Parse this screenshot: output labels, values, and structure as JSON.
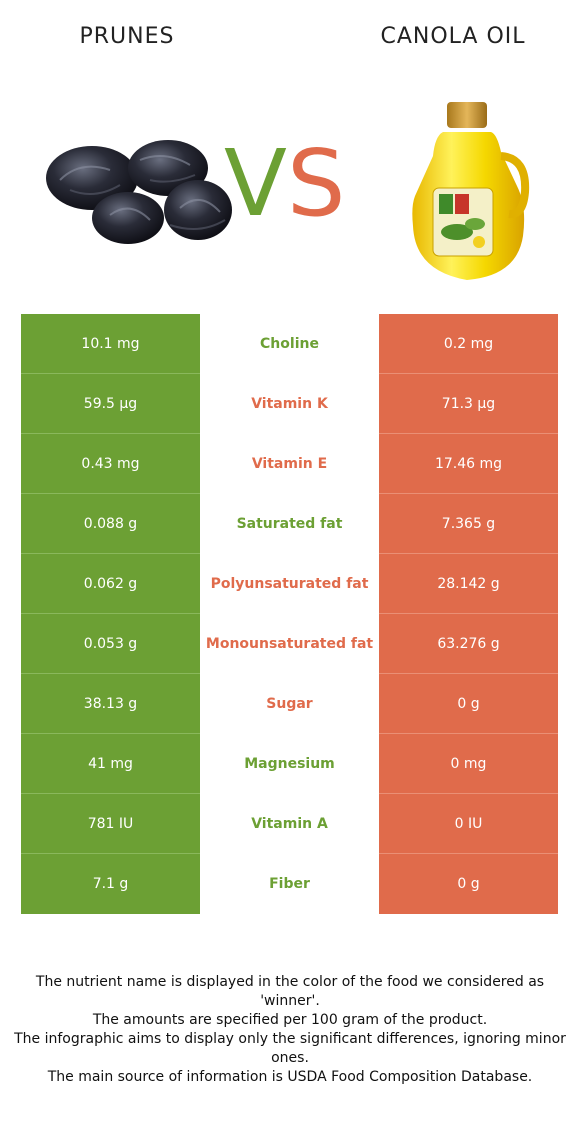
{
  "left_food": {
    "name": "PRUNES",
    "color": "#6ca034"
  },
  "right_food": {
    "name": "CANOLA OIL",
    "color": "#e06b4b"
  },
  "vs": {
    "v": "V",
    "s": "S"
  },
  "rows": [
    {
      "nutrient": "Choline",
      "left": "10.1 mg",
      "right": "0.2 mg",
      "winner": "left"
    },
    {
      "nutrient": "Vitamin K",
      "left": "59.5 µg",
      "right": "71.3 µg",
      "winner": "right"
    },
    {
      "nutrient": "Vitamin E",
      "left": "0.43 mg",
      "right": "17.46 mg",
      "winner": "right"
    },
    {
      "nutrient": "Saturated fat",
      "left": "0.088 g",
      "right": "7.365 g",
      "winner": "left"
    },
    {
      "nutrient": "Polyunsaturated fat",
      "left": "0.062 g",
      "right": "28.142 g",
      "winner": "right"
    },
    {
      "nutrient": "Monounsaturated fat",
      "left": "0.053 g",
      "right": "63.276 g",
      "winner": "right"
    },
    {
      "nutrient": "Sugar",
      "left": "38.13 g",
      "right": "0 g",
      "winner": "right"
    },
    {
      "nutrient": "Magnesium",
      "left": "41 mg",
      "right": "0 mg",
      "winner": "left"
    },
    {
      "nutrient": "Vitamin A",
      "left": "781 IU",
      "right": "0 IU",
      "winner": "left"
    },
    {
      "nutrient": "Fiber",
      "left": "7.1 g",
      "right": "0 g",
      "winner": "left"
    }
  ],
  "notes": [
    "The nutrient name is displayed in the color of the food we considered as 'winner'.",
    "The amounts are specified per 100 gram of the product.",
    "The infographic aims to display only the significant differences, ignoring minor ones.",
    "The main source of information is USDA Food Composition Database."
  ]
}
